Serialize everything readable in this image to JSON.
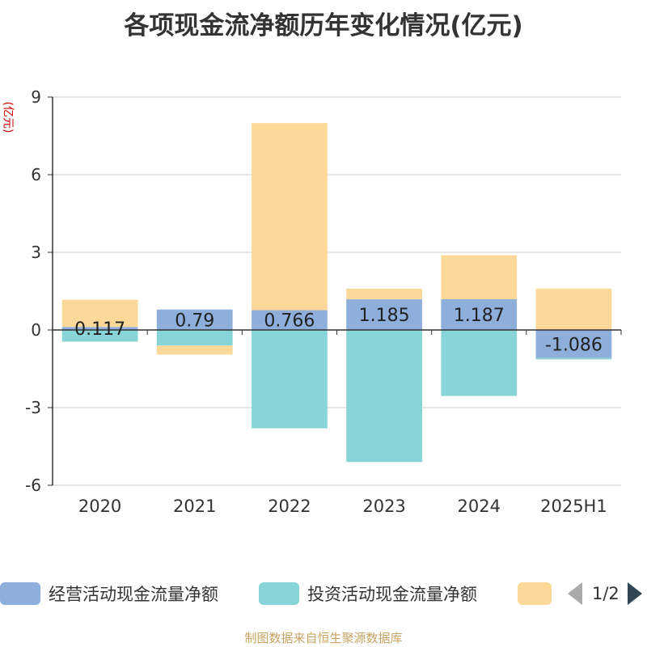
{
  "title": "各项现金流净额历年变化情况(亿元)",
  "unit_label": "(亿元)",
  "source": "制图数据来自恒生聚源数据库",
  "legend": {
    "items": [
      {
        "label": "经营活动现金流量净额",
        "color": "#8eaedb"
      },
      {
        "label": "投资活动现金流量净额",
        "color": "#87d5d8"
      },
      {
        "label": "",
        "color": "#fdd999"
      }
    ],
    "page": "1/2"
  },
  "chart_data": {
    "type": "bar",
    "stacked": true,
    "categories": [
      "2020",
      "2021",
      "2022",
      "2023",
      "2024",
      "2025H1"
    ],
    "yticks": [
      "9",
      "6",
      "3",
      "0",
      "-3",
      "-6"
    ],
    "ylim": [
      -6,
      9
    ],
    "grid": true,
    "legend_position": "bottom",
    "series": [
      {
        "name": "经营活动现金流量净额",
        "color": "#8eaedb",
        "values": [
          0.117,
          0.79,
          0.766,
          1.185,
          1.187,
          -1.086
        ],
        "labels": [
          "0.117",
          "0.79",
          "0.766",
          "1.185",
          "1.187",
          "-1.086"
        ]
      },
      {
        "name": "投资活动现金流量净额",
        "color": "#87d5d8",
        "values": [
          -0.45,
          -0.6,
          -3.8,
          -5.1,
          -2.55,
          -0.05
        ]
      },
      {
        "name": "",
        "color": "#fdd999",
        "values": [
          1.05,
          -0.35,
          7.23,
          0.41,
          1.7,
          1.6
        ]
      }
    ]
  }
}
